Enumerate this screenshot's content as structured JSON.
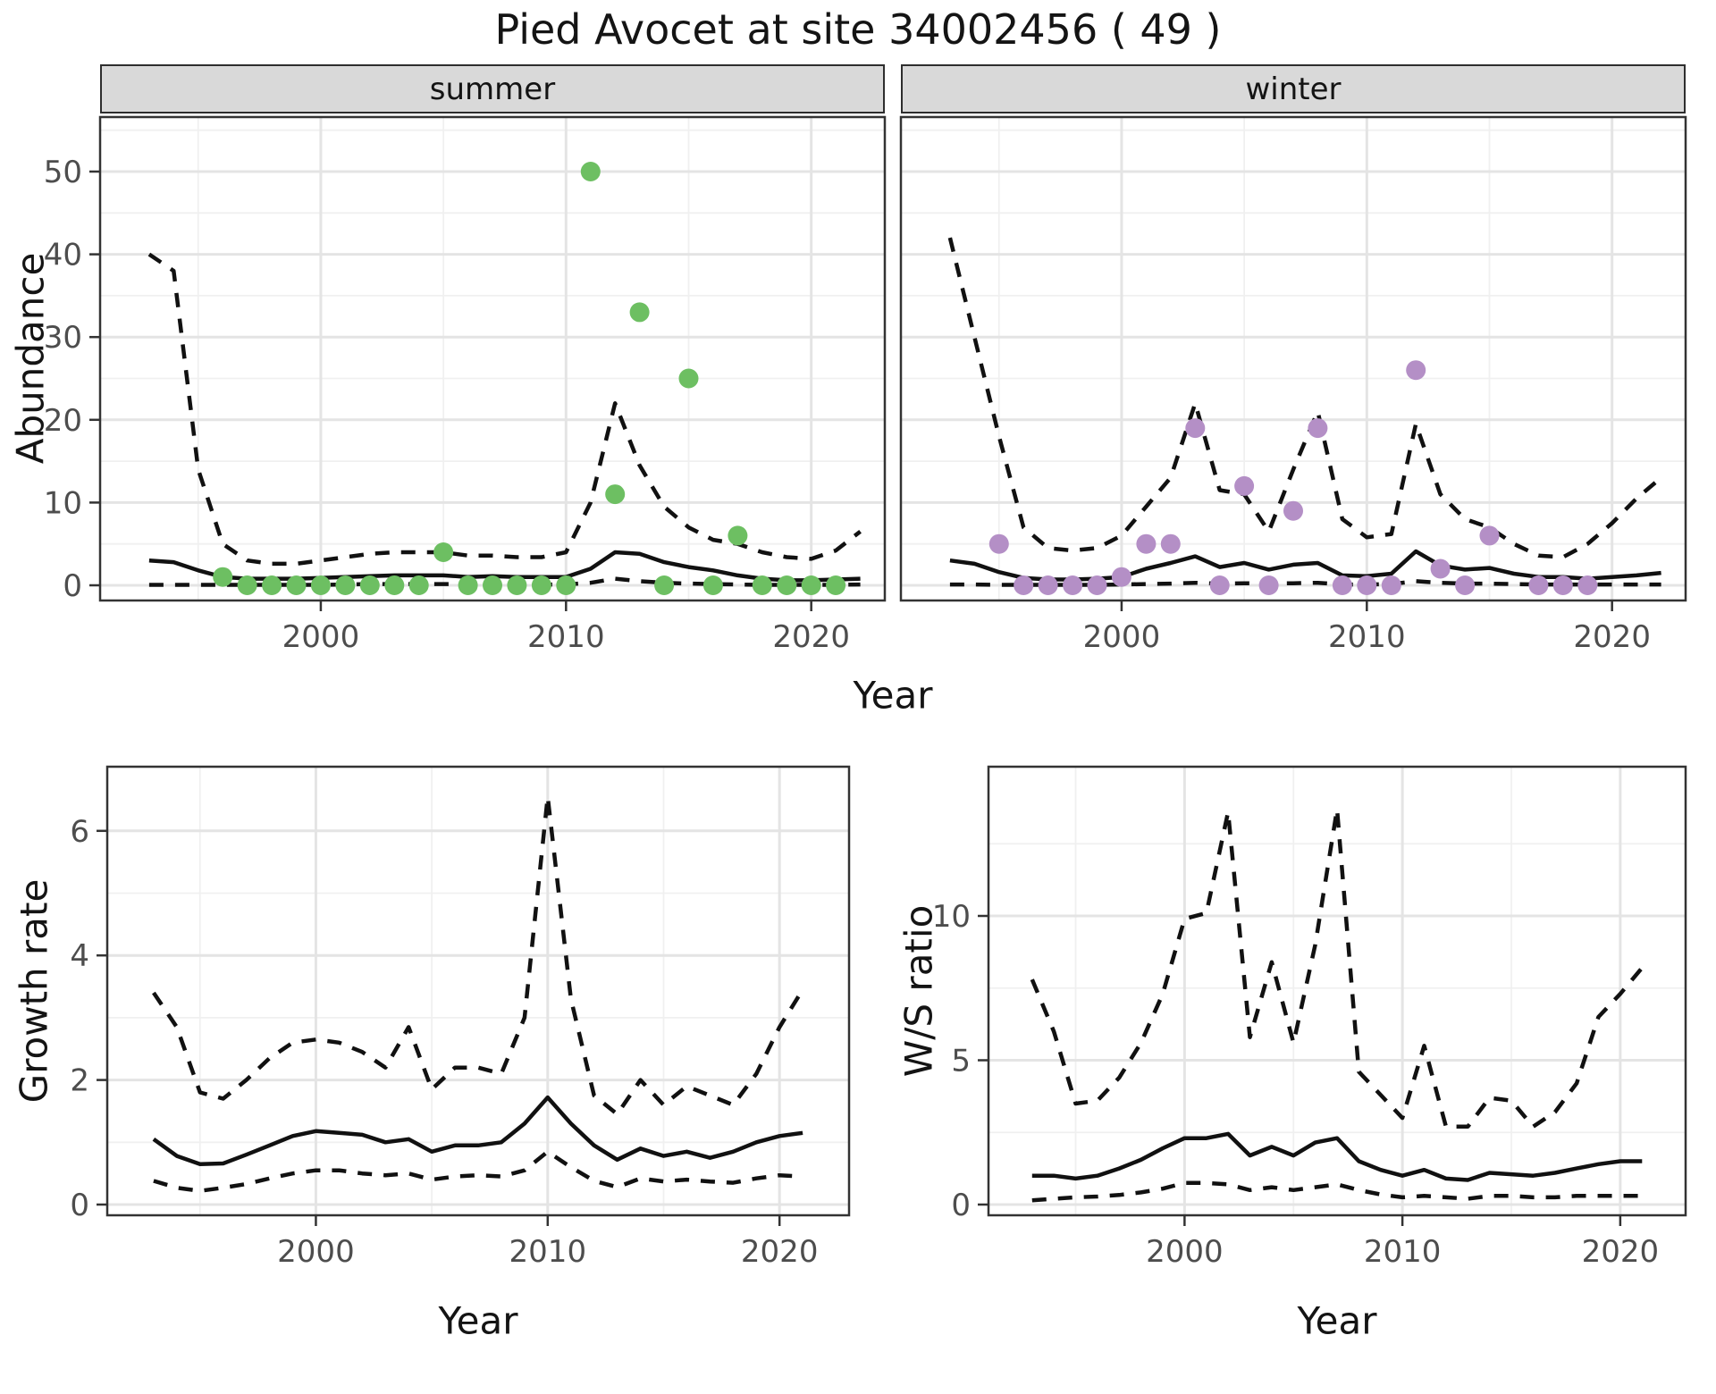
{
  "title": "Pied Avocet at site 34002456 ( 49 )",
  "facets": [
    {
      "label": "summer"
    },
    {
      "label": "winter"
    }
  ],
  "axes": {
    "abundance_label": "Abundance",
    "year_label": "Year",
    "growth_label": "Growth rate",
    "ws_label": "W/S ratio"
  },
  "colors": {
    "summer_point": "#6dbf62",
    "winter_point": "#b48fc6",
    "line": "#111111",
    "strip_bg": "#d9d9d9",
    "panel_border": "#333333",
    "grid_major": "#e4e4e4",
    "grid_minor": "#f0f0f0",
    "tick_text": "#4d4d4d"
  },
  "chart_data": [
    {
      "id": "abundance-summer",
      "type": "line",
      "facet": "summer",
      "title": "summer",
      "xlabel": "Year",
      "ylabel": "Abundance",
      "xlim": [
        1991,
        2023
      ],
      "ylim": [
        0,
        50
      ],
      "xticks": [
        2000,
        2010,
        2020
      ],
      "xminor": [
        1995,
        2005,
        2015
      ],
      "yticks": [
        0,
        10,
        20,
        30,
        40,
        50
      ],
      "yminor": [
        5,
        15,
        25,
        35,
        45,
        55
      ],
      "years": [
        1993,
        1994,
        1995,
        1996,
        1997,
        1998,
        1999,
        2000,
        2001,
        2002,
        2003,
        2004,
        2005,
        2006,
        2007,
        2008,
        2009,
        2010,
        2011,
        2012,
        2013,
        2014,
        2015,
        2016,
        2017,
        2018,
        2019,
        2020,
        2021,
        2022
      ],
      "series": [
        {
          "name": "median",
          "style": "solid",
          "values": [
            3,
            2.8,
            1.8,
            1,
            0.8,
            0.8,
            0.8,
            0.9,
            1,
            1.1,
            1.2,
            1.2,
            1.2,
            1,
            1.1,
            1,
            1,
            1,
            2,
            4,
            3.8,
            2.8,
            2.2,
            1.8,
            1.2,
            0.8,
            0.6,
            0.6,
            0.7,
            0.8
          ]
        },
        {
          "name": "upper_ci",
          "style": "dashed",
          "values": [
            40,
            38,
            14,
            5,
            3,
            2.6,
            2.6,
            3,
            3.4,
            3.8,
            4,
            4,
            4,
            3.6,
            3.6,
            3.4,
            3.4,
            4,
            10,
            22,
            14.5,
            9.5,
            7,
            5.5,
            5,
            4,
            3.4,
            3.2,
            4.2,
            6.5
          ]
        },
        {
          "name": "lower_ci",
          "style": "dashed",
          "values": [
            0.05,
            0.05,
            0.05,
            0.05,
            0.05,
            0.05,
            0.05,
            0.05,
            0.1,
            0.15,
            0.15,
            0.15,
            0.15,
            0.15,
            0.15,
            0.1,
            0.1,
            0.1,
            0.3,
            0.8,
            0.5,
            0.3,
            0.2,
            0.15,
            0.1,
            0.05,
            0.05,
            0.05,
            0.05,
            0.1
          ]
        }
      ],
      "points": {
        "name": "observed-counts-summer",
        "color": "summer_point",
        "years": [
          1996,
          1997,
          1998,
          1999,
          2000,
          2001,
          2002,
          2003,
          2004,
          2005,
          2006,
          2007,
          2008,
          2009,
          2010,
          2011,
          2012,
          2013,
          2014,
          2015,
          2016,
          2017,
          2018,
          2019,
          2020,
          2021
        ],
        "values": [
          1,
          0,
          0,
          0,
          0,
          0,
          0,
          0,
          0,
          4,
          0,
          0,
          0,
          0,
          0,
          50,
          11,
          33,
          0,
          25,
          0,
          6,
          0,
          0,
          0,
          0
        ]
      }
    },
    {
      "id": "abundance-winter",
      "type": "line",
      "facet": "winter",
      "title": "winter",
      "xlabel": "Year",
      "ylabel": "Abundance",
      "xlim": [
        1991,
        2023
      ],
      "ylim": [
        0,
        50
      ],
      "xticks": [
        2000,
        2010,
        2020
      ],
      "xminor": [
        1995,
        2005,
        2015
      ],
      "yticks": [
        0,
        10,
        20,
        30,
        40,
        50
      ],
      "yminor": [
        5,
        15,
        25,
        35,
        45,
        55
      ],
      "years": [
        1993,
        1994,
        1995,
        1996,
        1997,
        1998,
        1999,
        2000,
        2001,
        2002,
        2003,
        2004,
        2005,
        2006,
        2007,
        2008,
        2009,
        2010,
        2011,
        2012,
        2013,
        2014,
        2015,
        2016,
        2017,
        2018,
        2019,
        2020,
        2021,
        2022
      ],
      "series": [
        {
          "name": "median",
          "style": "solid",
          "values": [
            3,
            2.6,
            1.6,
            0.9,
            0.7,
            0.7,
            0.8,
            1,
            2,
            2.7,
            3.5,
            2.2,
            2.7,
            1.9,
            2.5,
            2.7,
            1.2,
            1.1,
            1.4,
            4.1,
            2.4,
            1.9,
            2.1,
            1.4,
            1,
            1,
            0.8,
            1,
            1.2,
            1.5
          ]
        },
        {
          "name": "upper_ci",
          "style": "dashed",
          "values": [
            42,
            30,
            18,
            7,
            4.5,
            4.2,
            4.5,
            6,
            9.5,
            13,
            22,
            11.5,
            11,
            6.5,
            14,
            21,
            8,
            5.8,
            6.2,
            19.5,
            11,
            8,
            7,
            5,
            3.6,
            3.4,
            5,
            7.5,
            10.5,
            13
          ]
        },
        {
          "name": "lower_ci",
          "style": "dashed",
          "values": [
            0.1,
            0.1,
            0.05,
            0.05,
            0.05,
            0.05,
            0.05,
            0.1,
            0.15,
            0.2,
            0.3,
            0.2,
            0.25,
            0.2,
            0.25,
            0.3,
            0.1,
            0.1,
            0.15,
            0.5,
            0.3,
            0.2,
            0.2,
            0.15,
            0.1,
            0.1,
            0.1,
            0.1,
            0.1,
            0.1
          ]
        }
      ],
      "points": {
        "name": "observed-counts-winter",
        "color": "winter_point",
        "years": [
          1995,
          1996,
          1997,
          1998,
          1999,
          2000,
          2001,
          2002,
          2003,
          2004,
          2005,
          2006,
          2007,
          2008,
          2009,
          2010,
          2011,
          2012,
          2013,
          2014,
          2015,
          2017,
          2018,
          2019
        ],
        "values": [
          5,
          0,
          0,
          0,
          0,
          1,
          5,
          5,
          19,
          0,
          12,
          0,
          9,
          19,
          0,
          0,
          0,
          26,
          2,
          0,
          6,
          0,
          0,
          0
        ]
      }
    },
    {
      "id": "growth-rate",
      "type": "line",
      "title": "Growth rate",
      "xlabel": "Year",
      "ylabel": "Growth rate",
      "xlim": [
        1991,
        2023
      ],
      "ylim": [
        0,
        6.7
      ],
      "xticks": [
        2000,
        2010,
        2020
      ],
      "xminor": [
        1995,
        2005,
        2015
      ],
      "yticks": [
        0,
        2,
        4,
        6
      ],
      "yminor": [
        1,
        3,
        5
      ],
      "years": [
        1993,
        1994,
        1995,
        1996,
        1997,
        1998,
        1999,
        2000,
        2001,
        2002,
        2003,
        2004,
        2005,
        2006,
        2007,
        2008,
        2009,
        2010,
        2011,
        2012,
        2013,
        2014,
        2015,
        2016,
        2017,
        2018,
        2019,
        2020,
        2021
      ],
      "series": [
        {
          "name": "median",
          "style": "solid",
          "values": [
            1.05,
            0.78,
            0.65,
            0.66,
            0.8,
            0.95,
            1.1,
            1.18,
            1.15,
            1.12,
            1,
            1.05,
            0.85,
            0.95,
            0.95,
            1,
            1.3,
            1.72,
            1.3,
            0.95,
            0.72,
            0.9,
            0.78,
            0.85,
            0.75,
            0.85,
            1,
            1.1,
            1.15
          ]
        },
        {
          "name": "upper_ci",
          "style": "dashed",
          "values": [
            3.4,
            2.85,
            1.8,
            1.7,
            2,
            2.35,
            2.6,
            2.65,
            2.6,
            2.45,
            2.2,
            2.85,
            1.85,
            2.2,
            2.2,
            2.1,
            3,
            6.55,
            3.3,
            1.75,
            1.45,
            2,
            1.6,
            1.9,
            1.75,
            1.6,
            2.1,
            2.85,
            3.45
          ]
        },
        {
          "name": "lower_ci",
          "style": "dashed",
          "values": [
            0.38,
            0.27,
            0.22,
            0.27,
            0.33,
            0.42,
            0.5,
            0.55,
            0.55,
            0.5,
            0.47,
            0.5,
            0.4,
            0.45,
            0.47,
            0.45,
            0.55,
            0.85,
            0.6,
            0.38,
            0.28,
            0.42,
            0.37,
            0.4,
            0.37,
            0.35,
            0.42,
            0.47,
            0.45
          ]
        }
      ]
    },
    {
      "id": "ws-ratio",
      "type": "line",
      "title": "W/S ratio",
      "xlabel": "Year",
      "ylabel": "W/S ratio",
      "xlim": [
        1991,
        2023
      ],
      "ylim": [
        0,
        14.6
      ],
      "xticks": [
        2000,
        2010,
        2020
      ],
      "xminor": [
        1995,
        2005,
        2015
      ],
      "yticks": [
        0,
        5,
        10
      ],
      "yminor": [
        2.5,
        7.5,
        12.5
      ],
      "years": [
        1993,
        1994,
        1995,
        1996,
        1997,
        1998,
        1999,
        2000,
        2001,
        2002,
        2003,
        2004,
        2005,
        2006,
        2007,
        2008,
        2009,
        2010,
        2011,
        2012,
        2013,
        2014,
        2015,
        2016,
        2017,
        2018,
        2019,
        2020,
        2021
      ],
      "series": [
        {
          "name": "median",
          "style": "solid",
          "values": [
            1,
            1,
            0.9,
            1,
            1.25,
            1.55,
            1.95,
            2.3,
            2.3,
            2.45,
            1.7,
            2,
            1.7,
            2.15,
            2.3,
            1.5,
            1.2,
            1,
            1.2,
            0.9,
            0.85,
            1.1,
            1.05,
            1,
            1.1,
            1.25,
            1.4,
            1.5,
            1.5
          ]
        },
        {
          "name": "upper_ci",
          "style": "dashed",
          "values": [
            7.8,
            6,
            3.5,
            3.6,
            4.4,
            5.6,
            7.3,
            9.9,
            10.1,
            13.6,
            5.8,
            8.4,
            5.6,
            9,
            13.7,
            4.6,
            3.8,
            3,
            5.5,
            2.7,
            2.7,
            3.7,
            3.6,
            2.7,
            3.2,
            4.2,
            6.5,
            7.3,
            8.2
          ]
        },
        {
          "name": "lower_ci",
          "style": "dashed",
          "values": [
            0.15,
            0.2,
            0.25,
            0.28,
            0.33,
            0.42,
            0.55,
            0.75,
            0.75,
            0.7,
            0.5,
            0.6,
            0.5,
            0.6,
            0.7,
            0.5,
            0.35,
            0.25,
            0.3,
            0.25,
            0.2,
            0.3,
            0.3,
            0.25,
            0.25,
            0.3,
            0.3,
            0.3,
            0.3
          ]
        }
      ]
    }
  ]
}
